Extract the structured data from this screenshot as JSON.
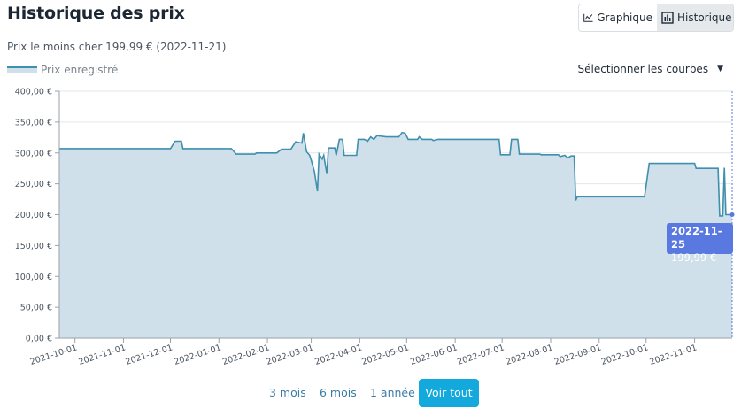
{
  "title": "Historique des prix",
  "subtitle": "Prix le moins cher 199,99 € (2022-11-21)",
  "legend": {
    "label": "Prix enregistré"
  },
  "view_toggle": [
    {
      "label": "Graphique",
      "icon": "line-chart-icon",
      "active": true
    },
    {
      "label": "Historique",
      "icon": "bar-chart-icon",
      "active": false
    }
  ],
  "select_curves": {
    "label": "Sélectionner les courbes"
  },
  "tooltip": {
    "date": "2022-11-25",
    "value": "199,99 €"
  },
  "range_buttons": [
    {
      "label": "3 mois",
      "active": false
    },
    {
      "label": "6 mois",
      "active": false
    },
    {
      "label": "1 année",
      "active": false
    },
    {
      "label": "Voir tout",
      "active": true
    }
  ],
  "colors": {
    "line": "#3f8fad",
    "area": "#cfe0ea",
    "accent": "#13a9dc",
    "tooltip": "#5a79e0"
  },
  "chart_data": {
    "type": "area",
    "ylim": [
      0,
      400
    ],
    "yticks": [
      "0,00 €",
      "50,00 €",
      "100,00 €",
      "150,00 €",
      "200,00 €",
      "250,00 €",
      "300,00 €",
      "350,00 €",
      "400,00 €"
    ],
    "xticks": [
      "2021-10-01",
      "2021-11-01",
      "2021-12-01",
      "2022-01-01",
      "2022-02-01",
      "2022-03-01",
      "2022-04-01",
      "2022-05-01",
      "2022-06-01",
      "2022-07-01",
      "2022-08-01",
      "2022-09-01",
      "2022-10-01",
      "2022-11-01"
    ],
    "series": [
      {
        "name": "Prix enregistré",
        "points": [
          [
            "2021-09-21",
            307
          ],
          [
            "2021-12-01",
            307
          ],
          [
            "2021-12-04",
            319
          ],
          [
            "2021-12-08",
            319
          ],
          [
            "2021-12-09",
            307
          ],
          [
            "2022-01-09",
            307
          ],
          [
            "2022-01-12",
            298
          ],
          [
            "2022-01-24",
            298
          ],
          [
            "2022-01-25",
            300
          ],
          [
            "2022-02-07",
            300
          ],
          [
            "2022-02-10",
            306
          ],
          [
            "2022-02-16",
            306
          ],
          [
            "2022-02-19",
            318
          ],
          [
            "2022-02-23",
            316
          ],
          [
            "2022-02-24",
            332
          ],
          [
            "2022-02-26",
            302
          ],
          [
            "2022-02-28",
            296
          ],
          [
            "2022-03-01",
            288
          ],
          [
            "2022-03-03",
            270
          ],
          [
            "2022-03-05",
            238
          ],
          [
            "2022-03-06",
            298
          ],
          [
            "2022-03-08",
            290
          ],
          [
            "2022-03-09",
            296
          ],
          [
            "2022-03-11",
            266
          ],
          [
            "2022-03-12",
            308
          ],
          [
            "2022-03-16",
            308
          ],
          [
            "2022-03-17",
            296
          ],
          [
            "2022-03-19",
            322
          ],
          [
            "2022-03-21",
            322
          ],
          [
            "2022-03-22",
            296
          ],
          [
            "2022-03-30",
            296
          ],
          [
            "2022-03-31",
            322
          ],
          [
            "2022-04-04",
            322
          ],
          [
            "2022-04-06",
            319
          ],
          [
            "2022-04-08",
            326
          ],
          [
            "2022-04-10",
            322
          ],
          [
            "2022-04-12",
            328
          ],
          [
            "2022-04-18",
            326
          ],
          [
            "2022-04-26",
            326
          ],
          [
            "2022-04-28",
            333
          ],
          [
            "2022-04-30",
            332
          ],
          [
            "2022-05-02",
            322
          ],
          [
            "2022-05-08",
            322
          ],
          [
            "2022-05-09",
            326
          ],
          [
            "2022-05-11",
            322
          ],
          [
            "2022-05-17",
            322
          ],
          [
            "2022-05-18",
            320
          ],
          [
            "2022-05-21",
            322
          ],
          [
            "2022-06-29",
            322
          ],
          [
            "2022-06-30",
            297
          ],
          [
            "2022-07-06",
            297
          ],
          [
            "2022-07-07",
            322
          ],
          [
            "2022-07-11",
            322
          ],
          [
            "2022-07-12",
            298
          ],
          [
            "2022-07-25",
            298
          ],
          [
            "2022-07-26",
            297
          ],
          [
            "2022-08-06",
            297
          ],
          [
            "2022-08-07",
            294
          ],
          [
            "2022-08-10",
            296
          ],
          [
            "2022-08-12",
            292
          ],
          [
            "2022-08-14",
            295
          ],
          [
            "2022-08-16",
            295
          ],
          [
            "2022-08-17",
            223
          ],
          [
            "2022-08-18",
            229
          ],
          [
            "2022-09-30",
            229
          ],
          [
            "2022-10-03",
            283
          ],
          [
            "2022-11-01",
            283
          ],
          [
            "2022-11-02",
            275
          ],
          [
            "2022-11-16",
            275
          ],
          [
            "2022-11-17",
            198
          ],
          [
            "2022-11-19",
            198
          ],
          [
            "2022-11-20",
            276
          ],
          [
            "2022-11-21",
            200
          ],
          [
            "2022-11-25",
            200
          ]
        ]
      }
    ]
  }
}
